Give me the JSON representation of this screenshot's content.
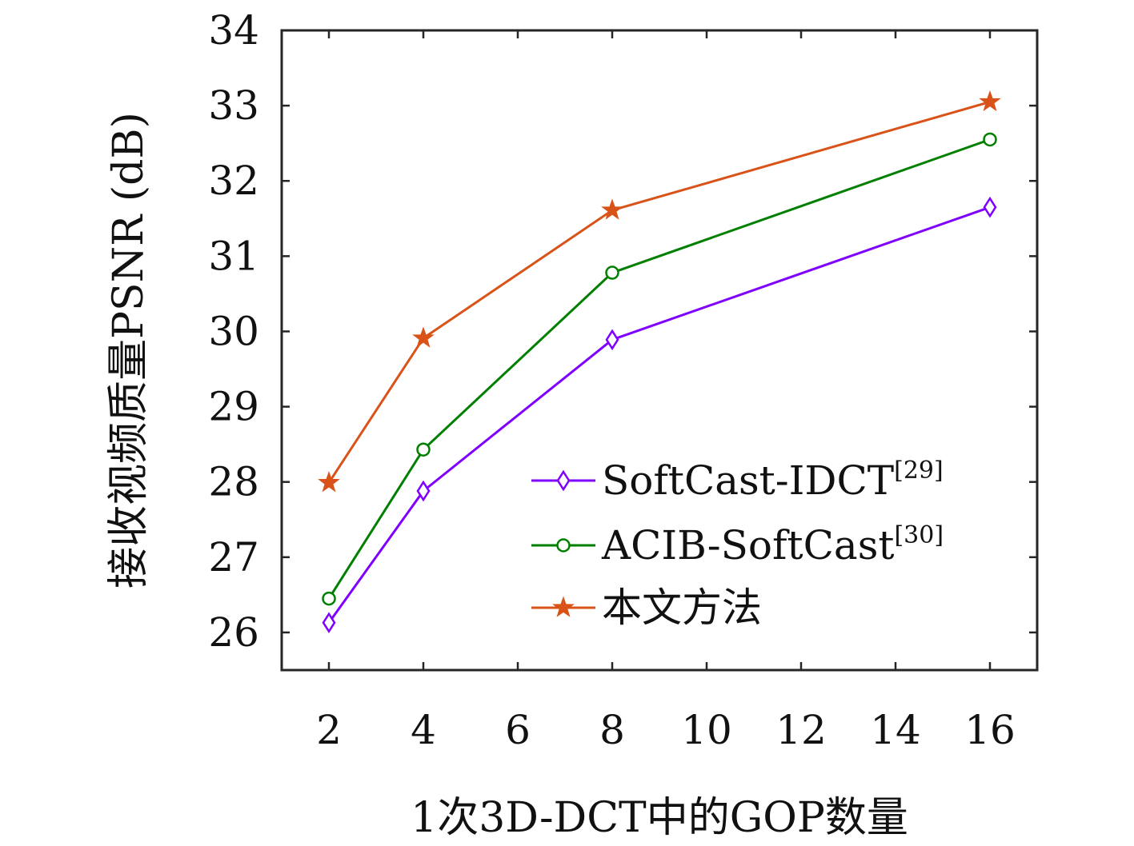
{
  "chart_data": {
    "type": "line",
    "xlabel": "1次3D-DCT中的GOP数量",
    "ylabel": "接收视频质量PSNR (dB)",
    "xlim": [
      1,
      17
    ],
    "ylim": [
      25.5,
      34
    ],
    "xticks": [
      2,
      4,
      6,
      8,
      10,
      12,
      14,
      16
    ],
    "yticks": [
      26,
      27,
      28,
      29,
      30,
      31,
      32,
      33,
      34
    ],
    "grid": false,
    "legend_position": "bottom-right",
    "x": [
      2,
      4,
      8,
      16
    ],
    "series": [
      {
        "name": "SoftCast-IDCT",
        "ref": "[29]",
        "color": "#7f00ff",
        "marker": "diamond",
        "values": [
          26.13,
          27.88,
          29.89,
          31.65
        ]
      },
      {
        "name": "ACIB-SoftCast",
        "ref": "[30]",
        "color": "#007f00",
        "marker": "circle",
        "values": [
          26.45,
          28.43,
          30.78,
          32.55
        ]
      },
      {
        "name": "本文方法",
        "ref": "",
        "color": "#d95319",
        "marker": "star",
        "values": [
          27.99,
          29.91,
          31.61,
          33.05
        ]
      }
    ]
  }
}
